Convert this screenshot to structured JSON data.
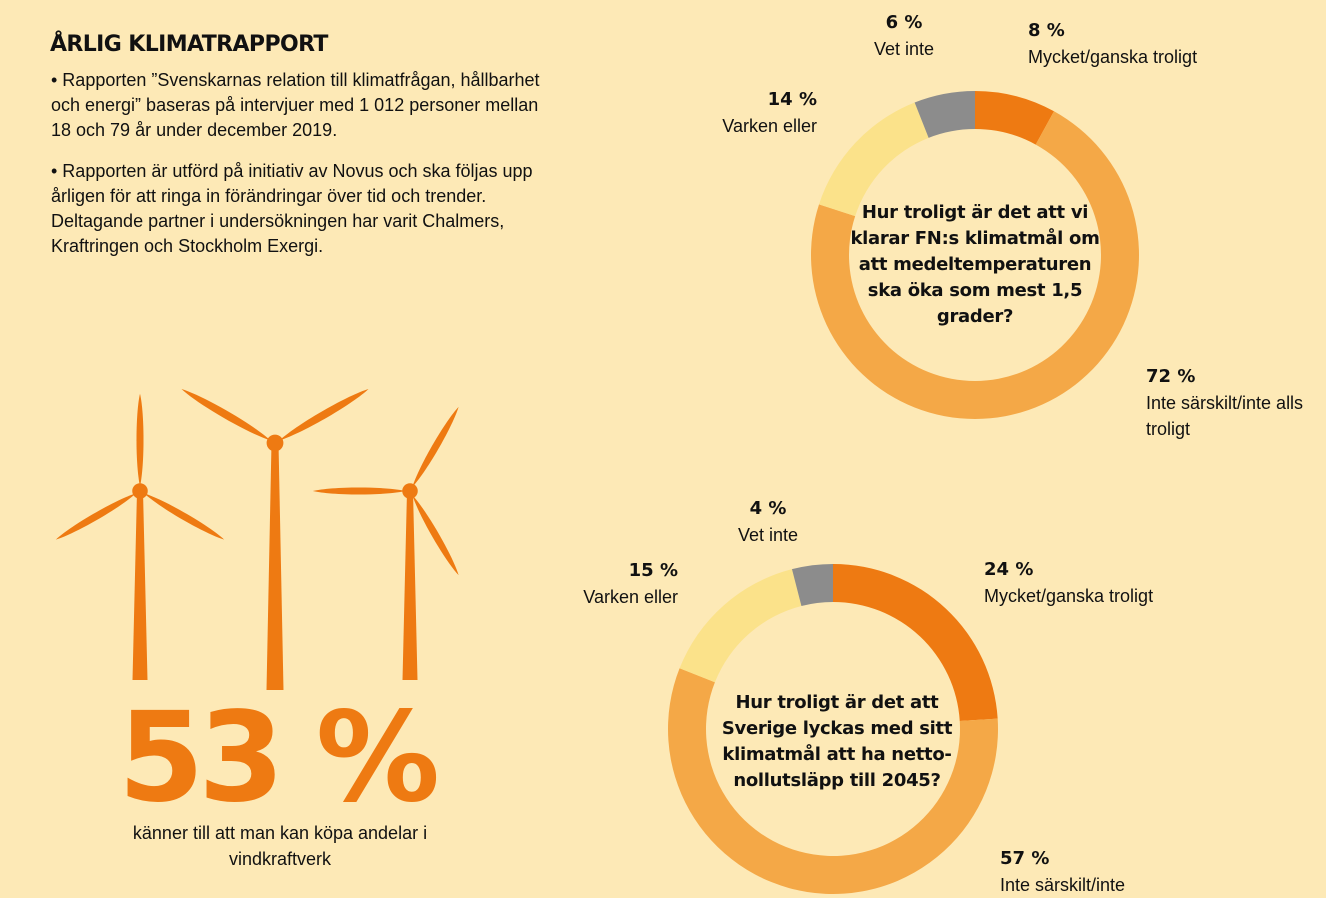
{
  "header": {
    "title": "ÅRLIG KLIMATRAPPORT",
    "paragraph1": "• Rapporten ”Svenskarnas relation till klimatfrågan, hållbarhet och energi” baseras på intervjuer med 1 012 personer mellan 18 och 79 år under december 2019.",
    "paragraph2": "• Rapporten är utförd på initiativ av Novus och ska följas upp årligen för att ringa in förändringar över tid och trender. Deltagande partner i undersökningen har varit Chalmers, Kraftringen och Stockholm Exergi."
  },
  "highlight": {
    "value": "53 %",
    "caption": "känner till att man kan köpa andelar i vindkraftverk",
    "icon": "wind-turbines-icon"
  },
  "colors": {
    "background": "#fde9b6",
    "likely": "#ee7a12",
    "not_likely": "#f4a847",
    "neither": "#fbe28a",
    "dont_know": "#8c8c8c",
    "turbine": "#ee7a12"
  },
  "chart_data": [
    {
      "type": "pie",
      "title": "Hur troligt är det att vi klarar FN:s klimatmål om att medeltemperaturen ska öka som mest 1,5 grader?",
      "slices": [
        {
          "label": "Mycket/ganska troligt",
          "value": 8,
          "pct_text": "8 %",
          "color": "#ee7a12"
        },
        {
          "label": "Inte särskilt/inte alls troligt",
          "value": 72,
          "pct_text": "72 %",
          "color": "#f4a847"
        },
        {
          "label": "Varken eller",
          "value": 14,
          "pct_text": "14 %",
          "color": "#fbe28a"
        },
        {
          "label": "Vet inte",
          "value": 6,
          "pct_text": "6 %",
          "color": "#8c8c8c"
        }
      ]
    },
    {
      "type": "pie",
      "title": "Hur troligt är det att Sverige lyckas med sitt klimatmål att ha netto-nollutsläpp till 2045?",
      "slices": [
        {
          "label": "Mycket/ganska troligt",
          "value": 24,
          "pct_text": "24 %",
          "color": "#ee7a12"
        },
        {
          "label": "Inte särskilt/inte",
          "value": 57,
          "pct_text": "57 %",
          "color": "#f4a847"
        },
        {
          "label": "Varken eller",
          "value": 15,
          "pct_text": "15 %",
          "color": "#fbe28a"
        },
        {
          "label": "Vet inte",
          "value": 4,
          "pct_text": "4 %",
          "color": "#8c8c8c"
        }
      ]
    }
  ]
}
